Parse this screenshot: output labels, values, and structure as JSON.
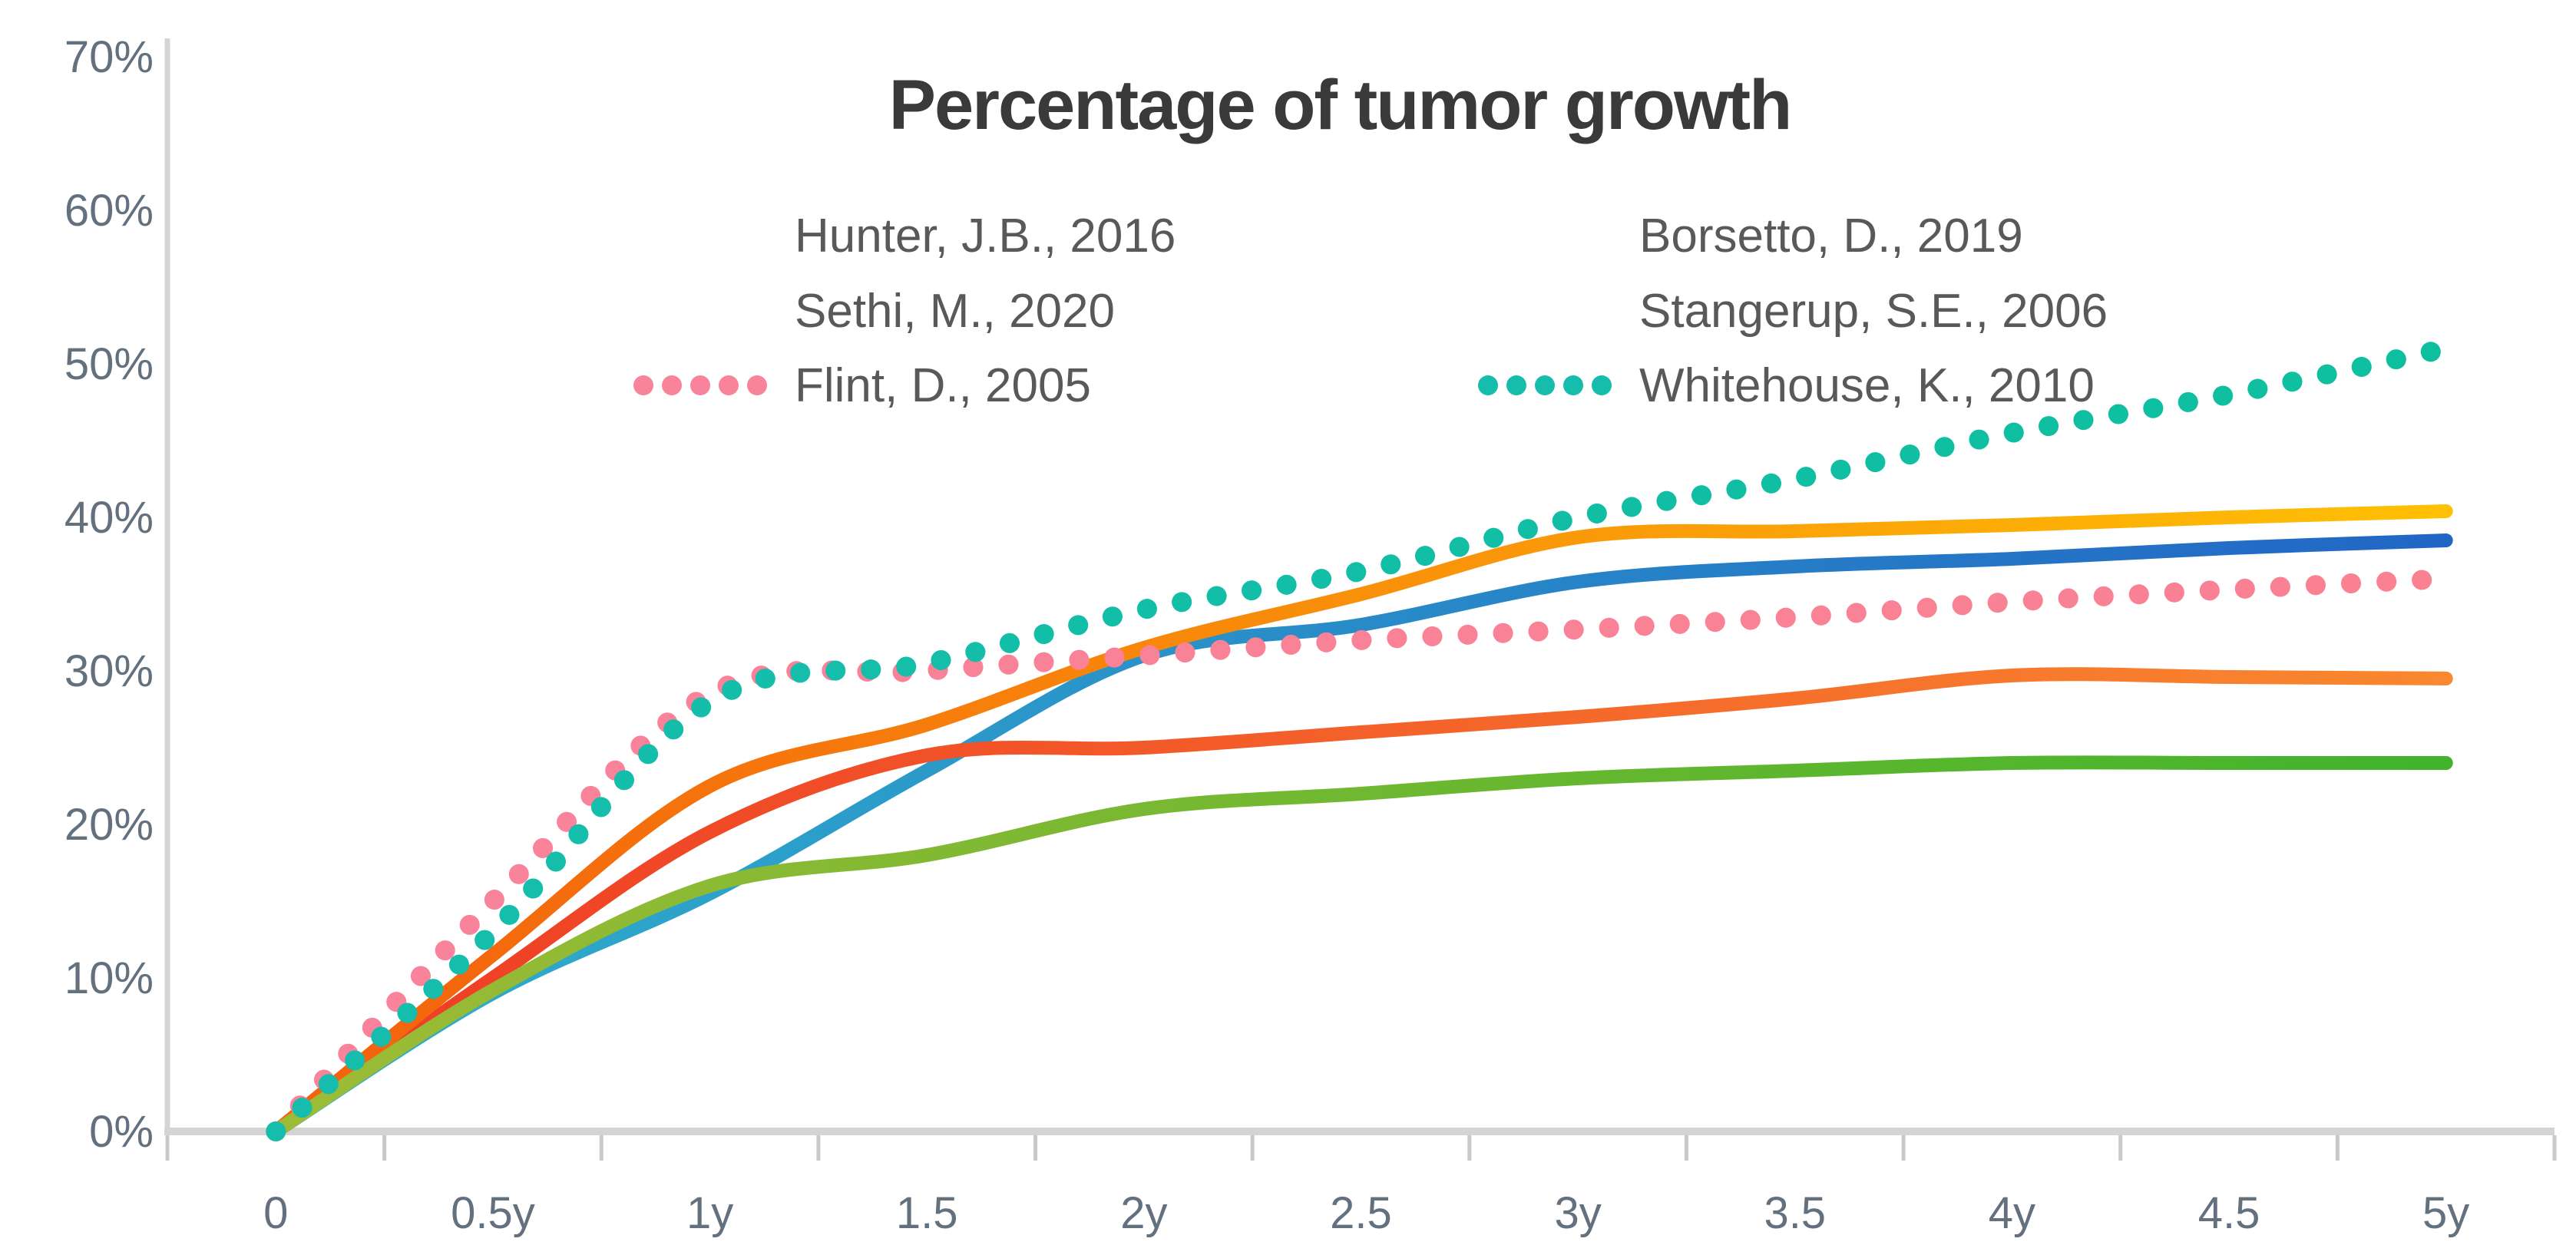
{
  "chart_data": {
    "type": "line",
    "title": "Percentage of tumor growth",
    "xlabel": "",
    "ylabel": "",
    "x_unit": "years",
    "categories": [
      "0",
      "0.5y",
      "1y",
      "1.5",
      "2y",
      "2.5",
      "3y",
      "3.5",
      "4y",
      "4.5",
      "5y"
    ],
    "x_values_years": [
      0,
      0.5,
      1,
      1.5,
      2,
      2.5,
      3,
      3.5,
      4,
      4.5,
      5
    ],
    "y_axis": {
      "tick_labels": [
        "0%",
        "10%",
        "20%",
        "30%",
        "40%",
        "50%",
        "60%",
        "70%"
      ],
      "min": 0,
      "max": 70,
      "step": 10,
      "unit": "%"
    },
    "grid": "off",
    "legend_position": "top-center",
    "legend_columns": 2,
    "series": [
      {
        "name": "Hunter, J.B., 2016",
        "style": "solid",
        "color_start": "#2FB0CB",
        "color_end": "#2266C5",
        "values": [
          0,
          9,
          15.5,
          23.5,
          31,
          33,
          35.8,
          36.8,
          37.3,
          38,
          38.5
        ]
      },
      {
        "name": "Borsetto, D., 2019",
        "style": "solid",
        "color_start": "#EE3A25",
        "color_end": "#F9882F",
        "values": [
          0,
          10,
          19.5,
          24.5,
          25,
          26,
          27,
          28.2,
          29.7,
          29.6,
          29.5
        ]
      },
      {
        "name": "Sethi, M., 2020",
        "style": "solid",
        "color_start": "#F3600E",
        "color_end": "#FFC005",
        "values": [
          0,
          11.5,
          22.5,
          26.5,
          31.5,
          35,
          38.7,
          39.1,
          39.5,
          40,
          40.4
        ]
      },
      {
        "name": "Stangerup, S.E., 2006",
        "style": "solid",
        "color_start": "#9EBB36",
        "color_end": "#41B42C",
        "values": [
          0,
          9.2,
          16,
          18,
          21,
          22,
          23,
          23.5,
          24,
          24,
          24
        ]
      },
      {
        "name": "Flint, D., 2005",
        "style": "dotted",
        "color_start": "#F9839B",
        "color_end": "#F98192",
        "values": [
          0,
          15,
          28.5,
          30,
          31,
          32,
          32.7,
          33.5,
          34.5,
          35.3,
          36
        ]
      },
      {
        "name": "Whitehouse, K., 2010",
        "style": "dotted",
        "color_start": "#16BDAD",
        "color_end": "#0EBF9F",
        "values": [
          0,
          13,
          28,
          30.5,
          34,
          36.5,
          40,
          42.5,
          45.5,
          48,
          51
        ]
      }
    ],
    "legend_layout": {
      "rows": [
        [
          "Hunter, J.B., 2016",
          "Borsetto, D., 2019"
        ],
        [
          "Sethi, M., 2020",
          "Stangerup, S.E., 2006"
        ],
        [
          "Flint, D., 2005",
          "Whitehouse, K., 2010"
        ]
      ]
    },
    "colors": {
      "background": "#ffffff",
      "axis_line": "#D4D4D4",
      "tick_mark": "#C9C9C9",
      "axis_label": "#63707e",
      "legend_text": "#595959",
      "title": "#3A3A3A"
    }
  }
}
